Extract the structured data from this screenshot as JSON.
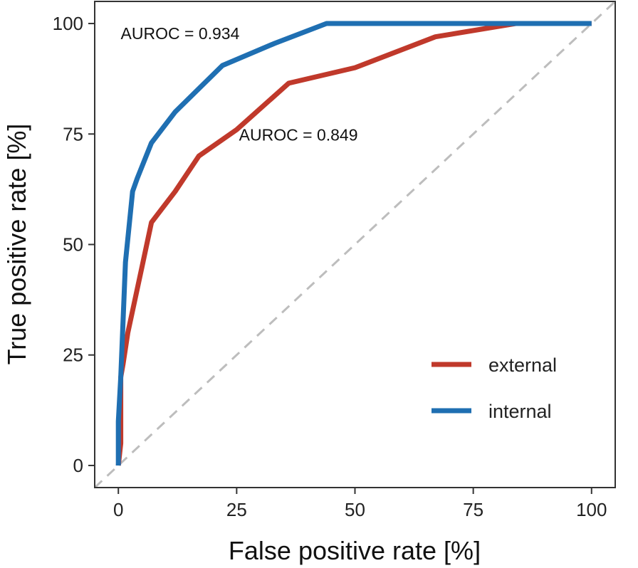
{
  "chart_data": {
    "type": "line",
    "xlabel": "False positive rate [%]",
    "ylabel": "True positive rate [%]",
    "xlim": [
      -5,
      105
    ],
    "ylim": [
      -5,
      105
    ],
    "xticks": [
      0,
      25,
      50,
      75,
      100
    ],
    "yticks": [
      0,
      25,
      50,
      75,
      100
    ],
    "xtick_labels": [
      "0",
      "25",
      "50",
      "75",
      "100"
    ],
    "ytick_labels": [
      "0",
      "25",
      "50",
      "75",
      "100"
    ],
    "grid": false,
    "legend_position": "bottom-right",
    "reference_line": {
      "style": "dashed",
      "color": "#bdbdbd",
      "from": [
        -5,
        -5
      ],
      "to": [
        105,
        105
      ]
    },
    "series": [
      {
        "name": "external",
        "color": "#c0392b",
        "x": [
          0,
          0.5,
          0.5,
          1,
          2,
          5,
          7,
          12,
          17,
          25,
          36,
          50,
          67,
          84,
          100
        ],
        "y": [
          0,
          5,
          20,
          23,
          30,
          45,
          55,
          62,
          70,
          76,
          86.5,
          90,
          97,
          100,
          100
        ]
      },
      {
        "name": "internal",
        "color": "#1f6fb2",
        "x": [
          0,
          0,
          0.5,
          1.5,
          3,
          4,
          7,
          12,
          22,
          33,
          44,
          60,
          100
        ],
        "y": [
          0,
          10,
          20,
          46,
          62,
          65,
          73,
          80,
          90.5,
          95.5,
          100,
          100,
          100
        ]
      }
    ],
    "annotations": [
      {
        "text": "AUROC = 0.934",
        "x": 0.5,
        "y": 96.5
      },
      {
        "text": "AUROC = 0.849",
        "x": 25.5,
        "y": 73.5
      }
    ]
  }
}
